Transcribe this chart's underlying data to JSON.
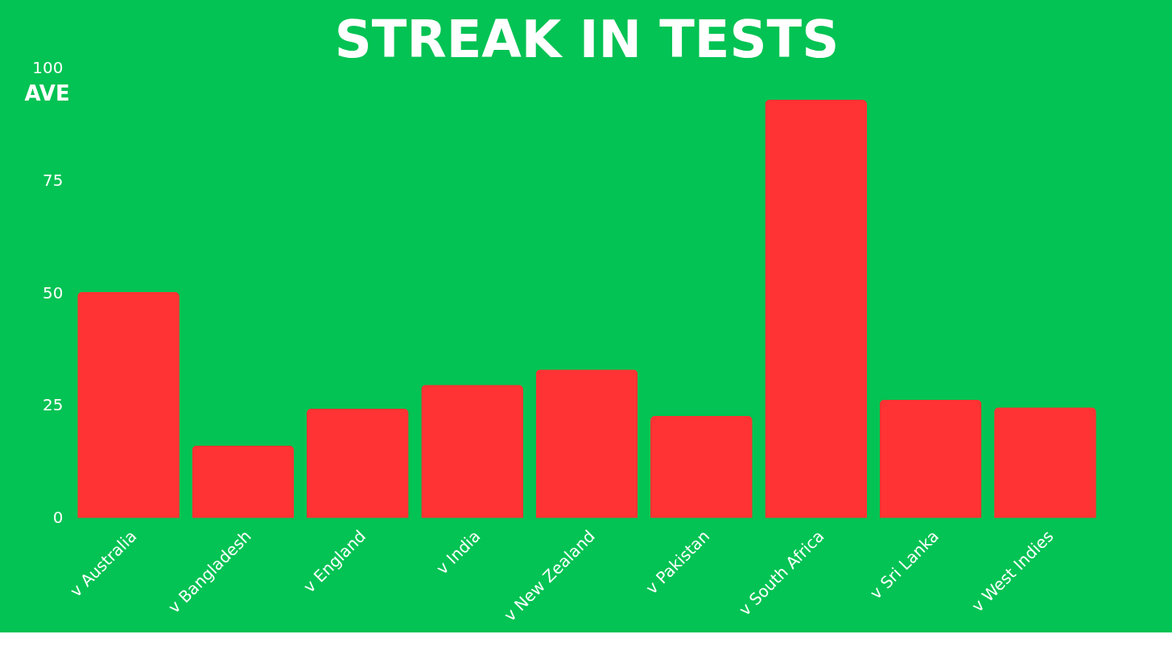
{
  "chart_data": {
    "type": "bar",
    "title": "STREAK IN TESTS",
    "ylabel": "AVE",
    "categories": [
      "v Australia",
      "v Bangladesh",
      "v England",
      "v India",
      "v New Zealand",
      "v Pakistan",
      "v South Africa",
      "v Sri Lanka",
      "v West Indies"
    ],
    "values": [
      50.2,
      16.1,
      24.3,
      29.6,
      33.0,
      22.7,
      92.9,
      26.3,
      24.6
    ],
    "color": "#ff3333",
    "ylim": [
      0,
      100
    ],
    "yticks": [
      0,
      25,
      50,
      75,
      100
    ],
    "grid": false,
    "legend": false
  }
}
